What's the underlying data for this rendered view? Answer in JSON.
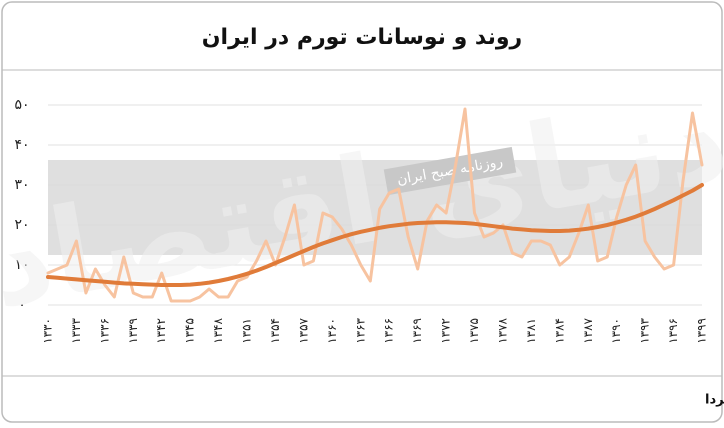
{
  "chart_data": {
    "type": "line",
    "title": "روند و نوسانات تورم در ایران",
    "source": "منبع: تجارت فردا",
    "watermark": {
      "brand": "دنیای اقتصاد",
      "tagline": "روزنامه صبح ایران"
    },
    "categories": [
      "۱۳۳۰",
      null,
      null,
      "۱۳۳۳",
      null,
      null,
      "۱۳۳۶",
      null,
      null,
      "۱۳۳۹",
      null,
      null,
      "۱۳۴۲",
      null,
      null,
      "۱۳۴۵",
      null,
      null,
      "۱۳۴۸",
      null,
      null,
      "۱۳۵۱",
      null,
      null,
      "۱۳۵۴",
      null,
      null,
      "۱۳۵۷",
      null,
      null,
      "۱۳۶۰",
      null,
      null,
      "۱۳۶۳",
      null,
      null,
      "۱۳۶۶",
      null,
      null,
      "۱۳۶۹",
      null,
      null,
      "۱۳۷۲",
      null,
      null,
      "۱۳۷۵",
      null,
      null,
      "۱۳۷۸",
      null,
      null,
      "۱۳۸۱",
      null,
      null,
      "۱۳۸۴",
      null,
      null,
      "۱۳۸۷",
      null,
      null,
      "۱۳۹۰",
      null,
      null,
      "۱۳۹۳",
      null,
      null,
      "۱۳۹۶",
      null,
      null,
      "۱۳۹۹"
    ],
    "series": [
      {
        "color": "#f7c3a0",
        "width": 3,
        "values": [
          8,
          9,
          10,
          16,
          3,
          9,
          5,
          2,
          12,
          3,
          2,
          2,
          8,
          1,
          1,
          1,
          2,
          4,
          2,
          2,
          6,
          7,
          11,
          16,
          10,
          17,
          25,
          10,
          11,
          23,
          22,
          19,
          15,
          10,
          6,
          24,
          28,
          29,
          17,
          9,
          21,
          25,
          23,
          35,
          49,
          23,
          17,
          18,
          20,
          13,
          12,
          16,
          16,
          15,
          10,
          12,
          18,
          25,
          11,
          12,
          22,
          30,
          35,
          16,
          12,
          9,
          10,
          31,
          48,
          35
        ]
      },
      {
        "color": "#e07b39",
        "width": 4,
        "values": [
          7,
          6.8,
          6.6,
          6.4,
          6.2,
          6.0,
          5.8,
          5.6,
          5.4,
          5.3,
          5.2,
          5.1,
          5.0,
          5.0,
          5.0,
          5.1,
          5.3,
          5.6,
          6.0,
          6.5,
          7.1,
          7.8,
          8.6,
          9.5,
          10.5,
          11.5,
          12.5,
          13.5,
          14.5,
          15.4,
          16.2,
          17.0,
          17.7,
          18.3,
          18.8,
          19.3,
          19.7,
          20.0,
          20.3,
          20.5,
          20.6,
          20.7,
          20.7,
          20.6,
          20.5,
          20.3,
          20.0,
          19.7,
          19.4,
          19.1,
          18.9,
          18.7,
          18.6,
          18.5,
          18.5,
          18.6,
          18.8,
          19.1,
          19.5,
          20.0,
          20.6,
          21.3,
          22.1,
          23.0,
          24.0,
          25.1,
          26.2,
          27.4,
          28.6,
          30.0
        ]
      }
    ],
    "ylim": [
      0,
      50
    ],
    "yticks": [
      {
        "value": 0,
        "label": "۰"
      },
      {
        "value": 10,
        "label": "۱۰"
      },
      {
        "value": 20,
        "label": "۲۰"
      },
      {
        "value": 30,
        "label": "۳۰"
      },
      {
        "value": 40,
        "label": "۴۰"
      },
      {
        "value": 50,
        "label": "۵۰"
      }
    ],
    "grid": true
  }
}
